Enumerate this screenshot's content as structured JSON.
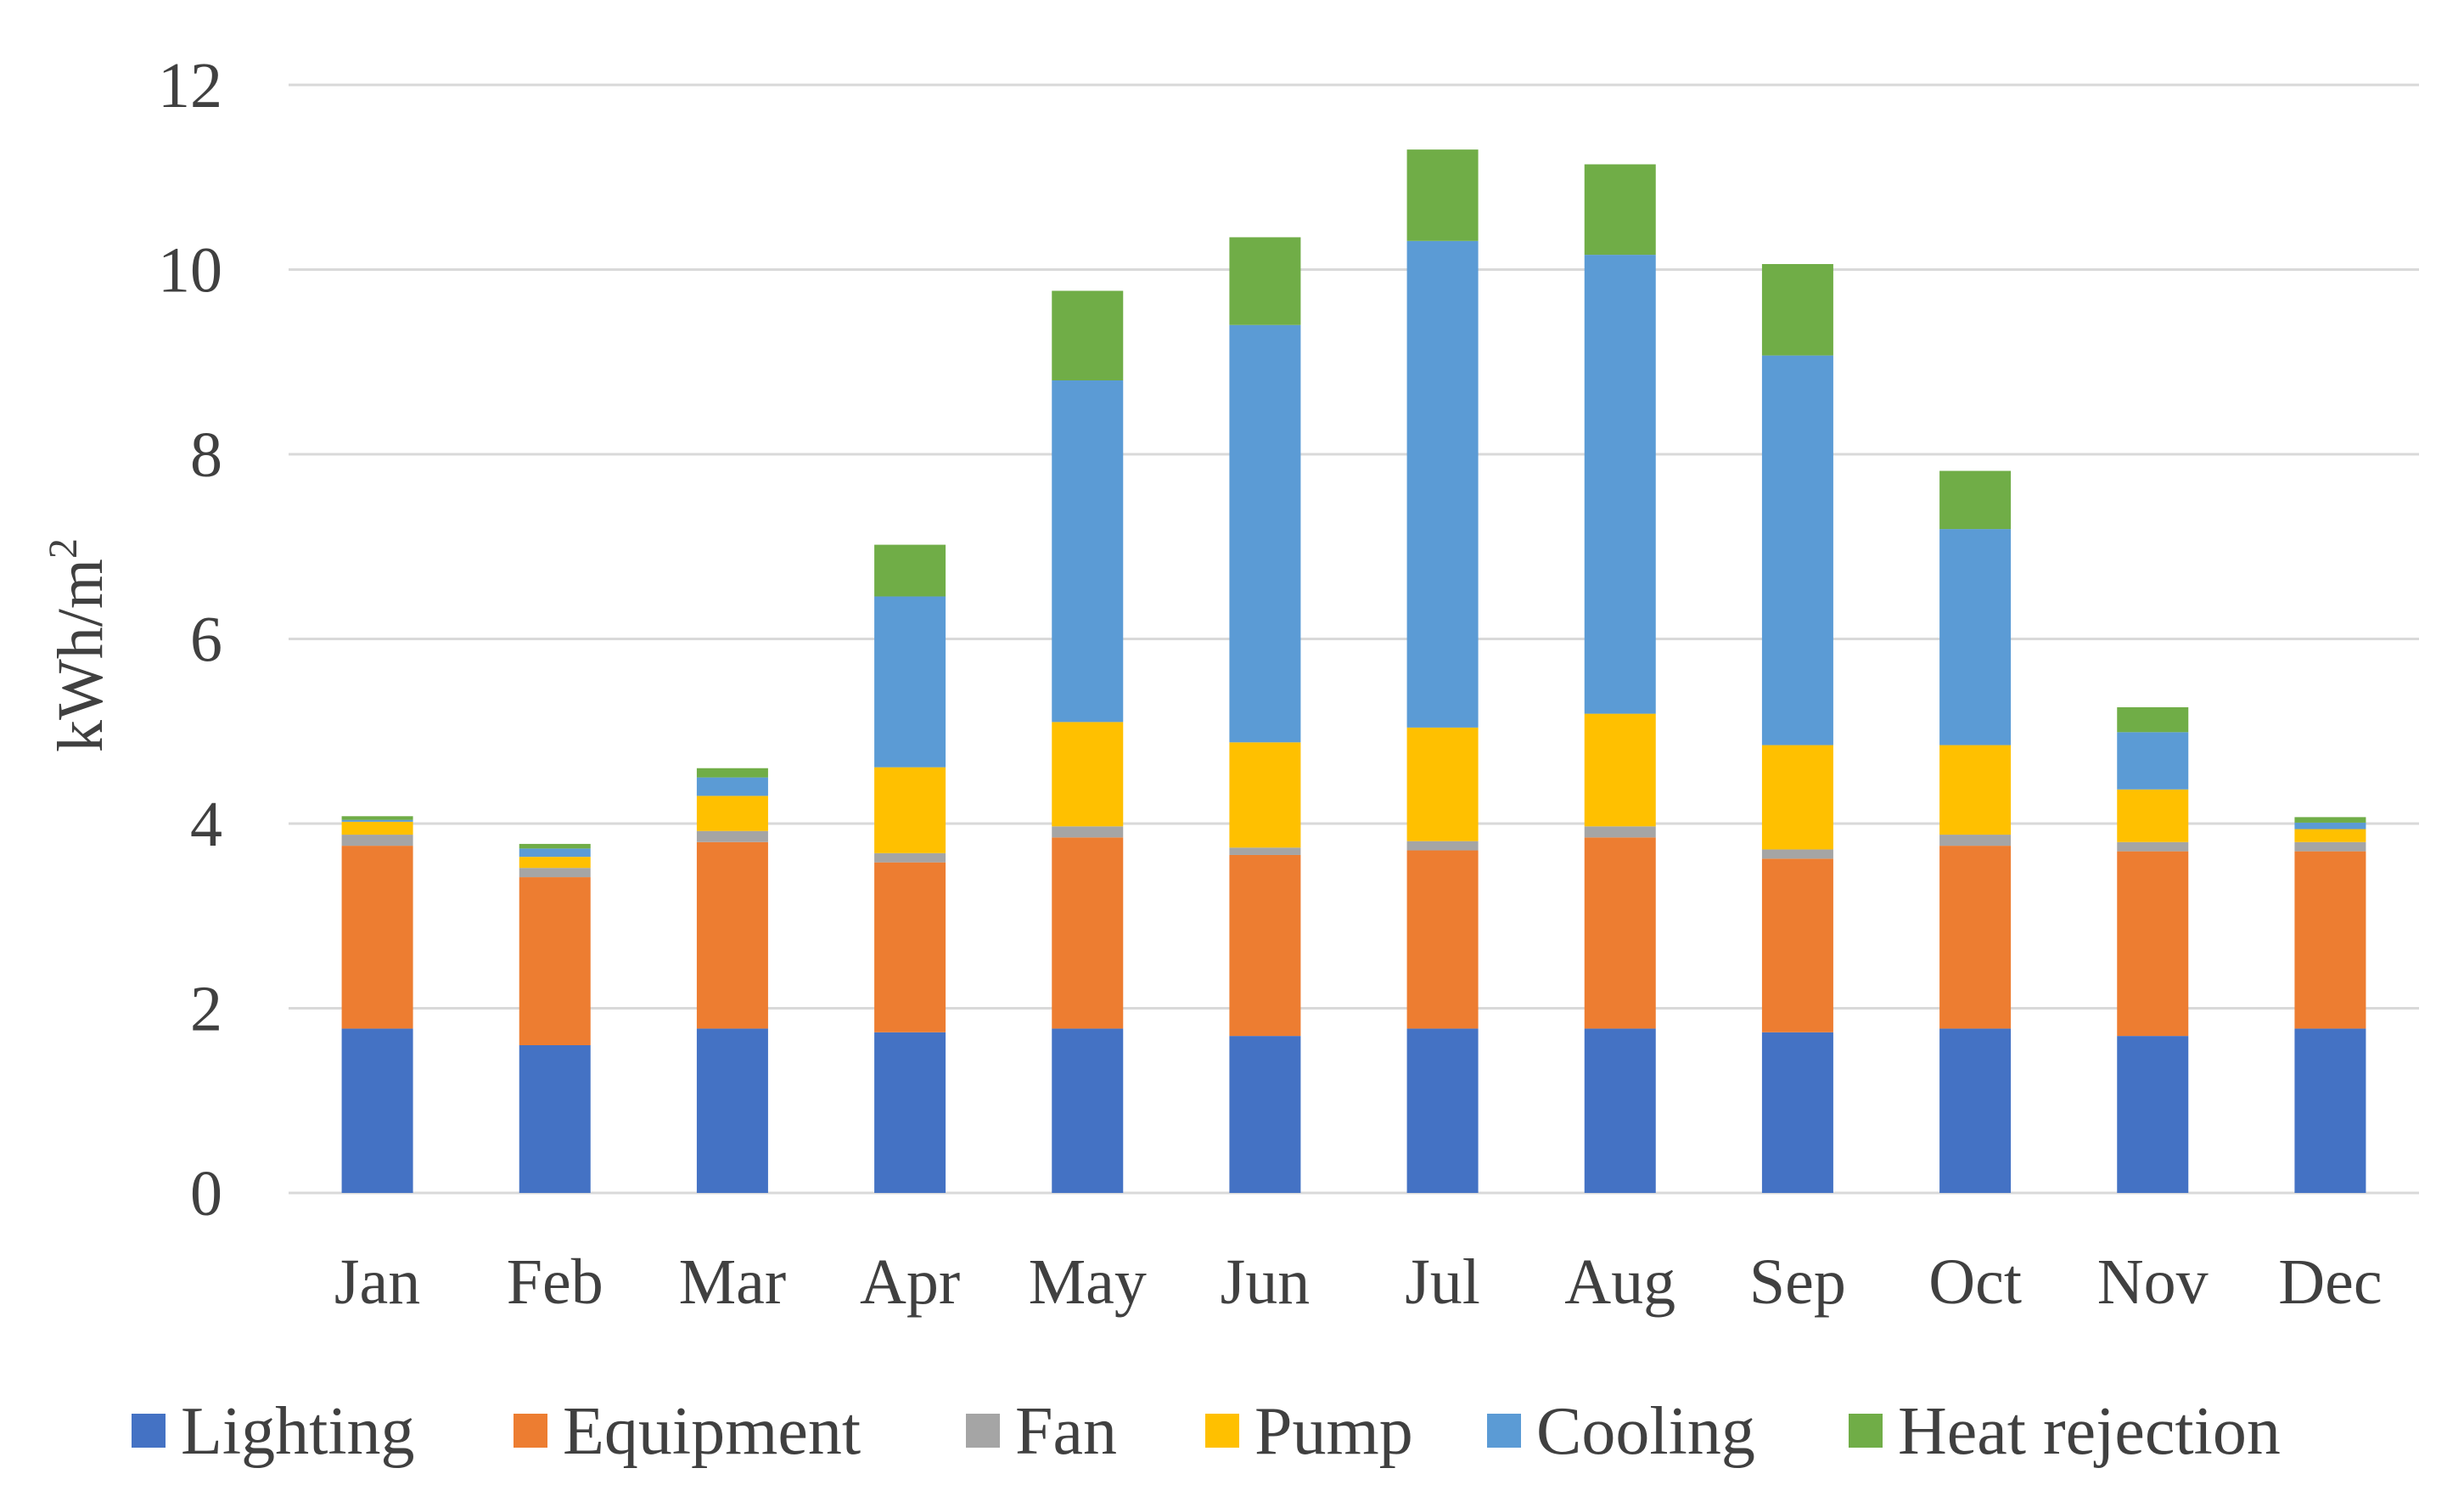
{
  "chart_data": {
    "type": "bar",
    "stacked": true,
    "title": "",
    "xlabel": "",
    "ylabel": "kWh/m",
    "ylabel_superscript": "2",
    "ylim": [
      0,
      12
    ],
    "yticks": [
      "0",
      "2",
      "4",
      "6",
      "8",
      "10",
      "12"
    ],
    "grid": true,
    "legend_position": "bottom",
    "categories": [
      "Jan",
      "Feb",
      "Mar",
      "Apr",
      "May",
      "Jun",
      "Jul",
      "Aug",
      "Sep",
      "Oct",
      "Nov",
      "Dec"
    ],
    "series": [
      {
        "name": "Lighting",
        "color": "#4472C4",
        "values": [
          1.78,
          1.6,
          1.78,
          1.74,
          1.78,
          1.7,
          1.78,
          1.78,
          1.74,
          1.78,
          1.7,
          1.78
        ]
      },
      {
        "name": "Equipment",
        "color": "#ED7D31",
        "values": [
          1.98,
          1.82,
          2.02,
          1.84,
          2.07,
          1.96,
          1.93,
          2.07,
          1.88,
          1.98,
          2.0,
          1.92
        ]
      },
      {
        "name": "Fan",
        "color": "#A5A5A5",
        "values": [
          0.12,
          0.1,
          0.12,
          0.1,
          0.12,
          0.08,
          0.1,
          0.12,
          0.1,
          0.12,
          0.1,
          0.1
        ]
      },
      {
        "name": "Pump",
        "color": "#FFC000",
        "values": [
          0.14,
          0.12,
          0.38,
          0.93,
          1.13,
          1.14,
          1.23,
          1.22,
          1.13,
          0.97,
          0.57,
          0.14
        ]
      },
      {
        "name": "Cooling",
        "color": "#5B9BD5",
        "values": [
          0.02,
          0.09,
          0.2,
          1.85,
          3.7,
          4.52,
          5.27,
          4.97,
          4.22,
          2.34,
          0.62,
          0.07
        ]
      },
      {
        "name": "Heat rejection",
        "color": "#70AD47",
        "values": [
          0.04,
          0.05,
          0.1,
          0.56,
          0.97,
          0.95,
          0.99,
          0.98,
          0.99,
          0.63,
          0.27,
          0.06
        ]
      }
    ]
  }
}
